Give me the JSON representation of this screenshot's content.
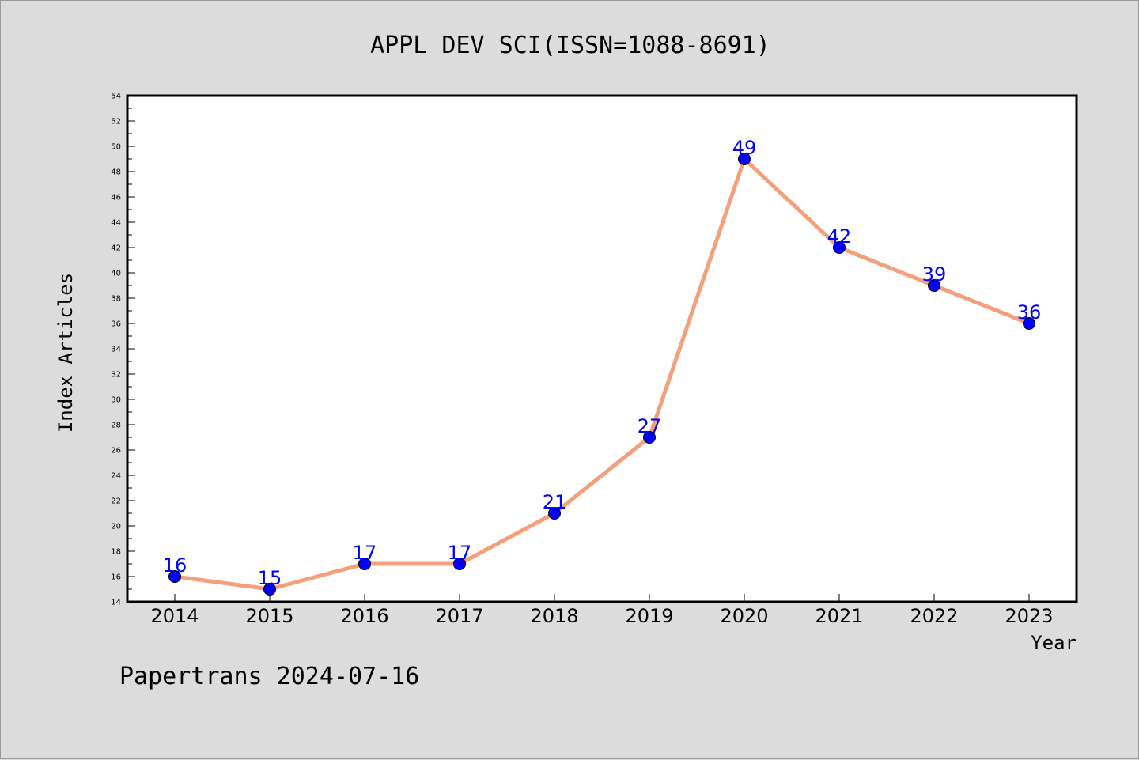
{
  "chart_data": {
    "type": "line",
    "title": "APPL DEV SCI(ISSN=1088-8691)",
    "xlabel": "Year",
    "ylabel": "Index Articles",
    "categories": [
      "2014",
      "2015",
      "2016",
      "2017",
      "2018",
      "2019",
      "2020",
      "2021",
      "2022",
      "2023"
    ],
    "values": [
      16,
      15,
      17,
      17,
      21,
      27,
      49,
      42,
      39,
      36
    ],
    "data_labels": [
      "16",
      "15",
      "17",
      "17",
      "21",
      "27",
      "49",
      "42",
      "39",
      "36"
    ],
    "ylim": [
      14,
      54
    ],
    "yticks": [
      "14",
      "16",
      "18",
      "20",
      "22",
      "24",
      "26",
      "28",
      "30",
      "32",
      "34",
      "36",
      "38",
      "40",
      "42",
      "44",
      "46",
      "48",
      "50",
      "52",
      "54"
    ],
    "grid": false,
    "legend": "none",
    "colors": {
      "line": "#f4a07c",
      "marker": "#0000ff",
      "label": "#0000ff",
      "background": "#dcdcdc",
      "plot_background": "#ffffff"
    }
  },
  "footer": {
    "text": "Papertrans 2024-07-16"
  }
}
